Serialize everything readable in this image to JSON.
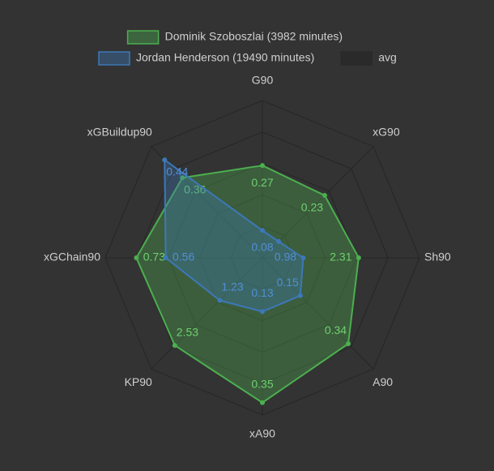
{
  "chart_data": {
    "type": "radar",
    "axes": [
      "G90",
      "xG90",
      "Sh90",
      "A90",
      "xA90",
      "KP90",
      "xGChain90",
      "xGBuildup90"
    ],
    "axis_ranges": [
      [
        0,
        0.46
      ],
      [
        0,
        0.41
      ],
      [
        0,
        3.77
      ],
      [
        0,
        0.44
      ],
      [
        0,
        0.38
      ],
      [
        0,
        3.21
      ],
      [
        0,
        0.91
      ],
      [
        0,
        0.5
      ]
    ],
    "series": [
      {
        "name": "Dominik Szoboszlai (3982 minutes)",
        "color": "#4caf50",
        "values": [
          0.27,
          0.23,
          2.31,
          0.34,
          0.35,
          2.53,
          0.73,
          0.36
        ]
      },
      {
        "name": "Jordan Henderson (19490 minutes)",
        "color": "#3d78b8",
        "values": [
          0.08,
          0.06,
          0.98,
          0.15,
          0.13,
          1.23,
          0.56,
          0.44
        ],
        "value_labels": [
          "0.08",
          null,
          "0.98",
          "0.15",
          "0.13",
          "1.23",
          "0.56",
          "0.44"
        ]
      },
      {
        "name": "avg",
        "color": "#2a2a2a",
        "values": [
          null,
          null,
          null,
          null,
          null,
          null,
          null,
          null
        ]
      }
    ]
  }
}
